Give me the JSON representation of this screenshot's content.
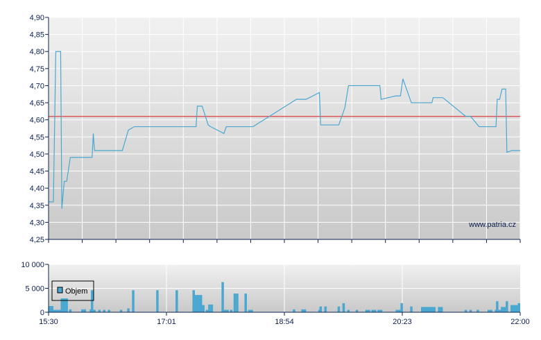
{
  "chart_data": [
    {
      "type": "line",
      "x_ticks": [
        "15:30",
        "17:01",
        "18:54",
        "20:23",
        "22:00"
      ],
      "y_ticks": [
        "4,25",
        "4,30",
        "4,35",
        "4,40",
        "4,45",
        "4,50",
        "4,55",
        "4,60",
        "4,65",
        "4,70",
        "4,75",
        "4,80",
        "4,85",
        "4,90"
      ],
      "ylim": [
        4.25,
        4.9
      ],
      "xlim": [
        "15:30",
        "22:00"
      ],
      "grid": true,
      "reference_line": {
        "value": 4.61,
        "color": "#e05a5a"
      },
      "line_color": "#4aa8d0",
      "watermark": "www.patria.cz",
      "series": [
        {
          "points": [
            [
              "15:30",
              4.36
            ],
            [
              "15:34",
              4.36
            ],
            [
              "15:36",
              4.8
            ],
            [
              "15:40",
              4.8
            ],
            [
              "15:41",
              4.34
            ],
            [
              "15:43",
              4.42
            ],
            [
              "15:45",
              4.42
            ],
            [
              "15:48",
              4.49
            ],
            [
              "16:06",
              4.49
            ],
            [
              "16:07",
              4.56
            ],
            [
              "16:08",
              4.51
            ],
            [
              "16:31",
              4.51
            ],
            [
              "16:36",
              4.57
            ],
            [
              "16:41",
              4.58
            ],
            [
              "17:32",
              4.58
            ],
            [
              "17:33",
              4.64
            ],
            [
              "17:37",
              4.64
            ],
            [
              "17:42",
              4.585
            ],
            [
              "17:44",
              4.58
            ],
            [
              "17:55",
              4.56
            ],
            [
              "17:57",
              4.58
            ],
            [
              "18:19",
              4.58
            ],
            [
              "18:55",
              4.66
            ],
            [
              "19:03",
              4.66
            ],
            [
              "19:14",
              4.68
            ],
            [
              "19:15",
              4.585
            ],
            [
              "19:30",
              4.585
            ],
            [
              "19:35",
              4.635
            ],
            [
              "19:38",
              4.7
            ],
            [
              "20:04",
              4.7
            ],
            [
              "20:05",
              4.66
            ],
            [
              "20:17",
              4.67
            ],
            [
              "20:21",
              4.67
            ],
            [
              "20:23",
              4.72
            ],
            [
              "20:30",
              4.65
            ],
            [
              "20:47",
              4.65
            ],
            [
              "20:48",
              4.665
            ],
            [
              "20:56",
              4.665
            ],
            [
              "21:15",
              4.61
            ],
            [
              "21:19",
              4.61
            ],
            [
              "21:26",
              4.58
            ],
            [
              "21:40",
              4.58
            ],
            [
              "21:41",
              4.66
            ],
            [
              "21:43",
              4.66
            ],
            [
              "21:45",
              4.69
            ],
            [
              "21:48",
              4.69
            ],
            [
              "21:49",
              4.505
            ],
            [
              "21:53",
              4.51
            ],
            [
              "22:00",
              4.51
            ]
          ]
        }
      ]
    },
    {
      "type": "bar",
      "legend": "Objem",
      "legend_position": "left",
      "bar_color": "#4aa8d0",
      "x_ticks": [
        "15:30",
        "17:01",
        "18:54",
        "20:23",
        "22:00"
      ],
      "y_ticks": [
        "0",
        "5 000",
        "10 000"
      ],
      "ylim": [
        0,
        10000
      ],
      "grid": true,
      "bars": [
        [
          "15:30",
          1300
        ],
        [
          "15:32",
          1300
        ],
        [
          "15:34",
          500
        ],
        [
          "15:36",
          500
        ],
        [
          "15:38",
          500
        ],
        [
          "15:40",
          2900
        ],
        [
          "15:42",
          2900
        ],
        [
          "15:44",
          2900
        ],
        [
          "15:47",
          600
        ],
        [
          "15:57",
          600
        ],
        [
          "15:59",
          600
        ],
        [
          "16:04",
          600
        ],
        [
          "16:05",
          4600
        ],
        [
          "16:07",
          500
        ],
        [
          "16:11",
          500
        ],
        [
          "16:15",
          500
        ],
        [
          "16:19",
          500
        ],
        [
          "16:29",
          500
        ],
        [
          "16:35",
          800
        ],
        [
          "16:39",
          4600
        ],
        [
          "16:59",
          4600
        ],
        [
          "17:15",
          4600
        ],
        [
          "17:29",
          4600
        ],
        [
          "17:31",
          3600
        ],
        [
          "17:33",
          3600
        ],
        [
          "17:35",
          3600
        ],
        [
          "17:37",
          1500
        ],
        [
          "17:40",
          500
        ],
        [
          "17:42",
          1600
        ],
        [
          "17:44",
          1600
        ],
        [
          "17:53",
          6300
        ],
        [
          "17:55",
          500
        ],
        [
          "17:57",
          500
        ],
        [
          "18:00",
          500
        ],
        [
          "18:03",
          3900
        ],
        [
          "18:05",
          3900
        ],
        [
          "18:12",
          3900
        ],
        [
          "18:15",
          500
        ],
        [
          "18:17",
          500
        ],
        [
          "18:52",
          600
        ],
        [
          "18:59",
          600
        ],
        [
          "19:01",
          600
        ],
        [
          "19:13",
          500
        ],
        [
          "19:14",
          1200
        ],
        [
          "19:18",
          1200
        ],
        [
          "19:29",
          1200
        ],
        [
          "19:33",
          1900
        ],
        [
          "19:37",
          500
        ],
        [
          "19:44",
          500
        ],
        [
          "19:52",
          500
        ],
        [
          "19:54",
          500
        ],
        [
          "19:57",
          500
        ],
        [
          "19:59",
          500
        ],
        [
          "20:02",
          500
        ],
        [
          "20:04",
          500
        ],
        [
          "20:17",
          500
        ],
        [
          "20:19",
          500
        ],
        [
          "20:21",
          1900
        ],
        [
          "20:29",
          1200
        ],
        [
          "20:38",
          1100
        ],
        [
          "20:40",
          1100
        ],
        [
          "20:42",
          1100
        ],
        [
          "20:44",
          1100
        ],
        [
          "20:46",
          1100
        ],
        [
          "20:48",
          1100
        ],
        [
          "20:52",
          1100
        ],
        [
          "20:54",
          1100
        ],
        [
          "21:14",
          500
        ],
        [
          "21:18",
          500
        ],
        [
          "21:24",
          500
        ],
        [
          "21:33",
          500
        ],
        [
          "21:35",
          500
        ],
        [
          "21:39",
          500
        ],
        [
          "21:40",
          2300
        ],
        [
          "21:42",
          500
        ],
        [
          "21:44",
          1100
        ],
        [
          "21:46",
          1100
        ],
        [
          "21:48",
          2300
        ],
        [
          "21:52",
          1500
        ],
        [
          "21:54",
          1500
        ],
        [
          "21:56",
          1500
        ],
        [
          "21:58",
          1900
        ]
      ]
    }
  ]
}
